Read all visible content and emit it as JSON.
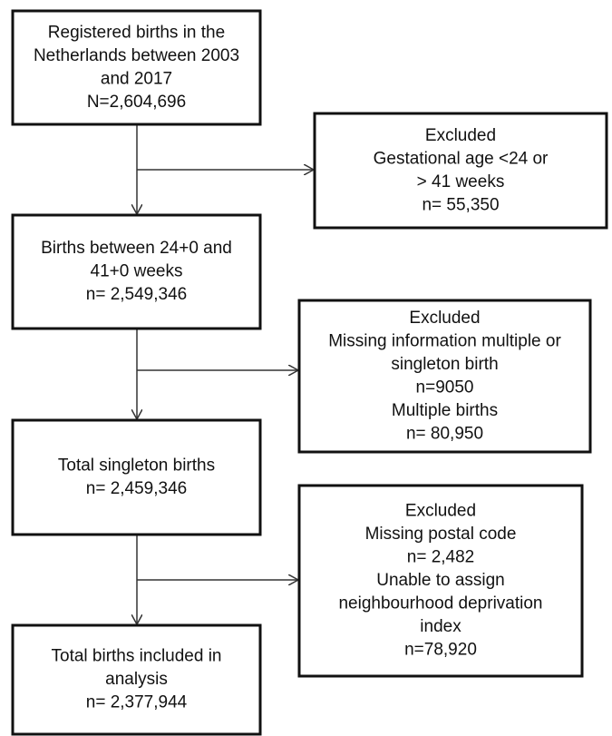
{
  "nodes": [
    {
      "lines": [
        "Registered births in the",
        "Netherlands between 2003",
        "and 2017",
        "N=2,604,696"
      ]
    },
    {
      "lines": [
        "Excluded",
        "Gestational age <24 or",
        "> 41 weeks",
        "n= 55,350"
      ]
    },
    {
      "lines": [
        "Births between 24+0 and",
        "41+0 weeks",
        "n= 2,549,346"
      ]
    },
    {
      "lines": [
        "Excluded",
        "Missing information multiple or",
        "singleton birth",
        "n=9050",
        "Multiple births",
        "n= 80,950"
      ]
    },
    {
      "lines": [
        "Total singleton births",
        "n= 2,459,346"
      ]
    },
    {
      "lines": [
        "Excluded",
        "Missing postal code",
        "n= 2,482",
        "Unable to assign",
        "neighbourhood deprivation",
        "index",
        "n=78,920"
      ]
    },
    {
      "lines": [
        "Total births included in",
        "analysis",
        "n= 2,377,944"
      ]
    }
  ]
}
